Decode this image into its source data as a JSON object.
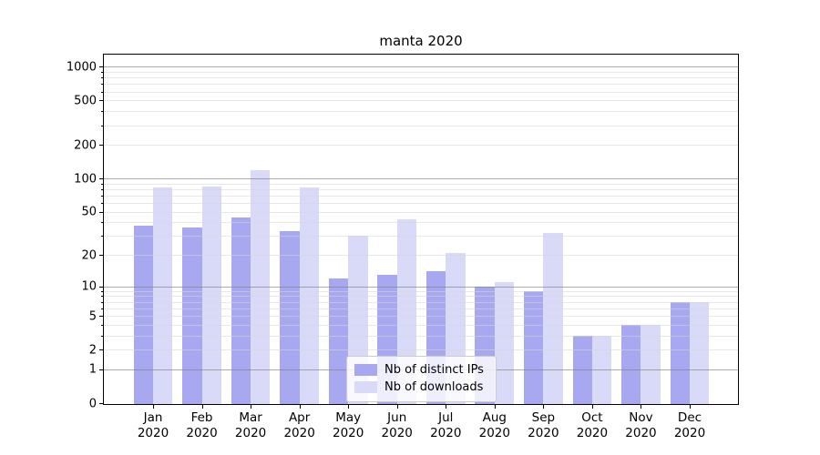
{
  "figure": {
    "title": "manta 2020"
  },
  "chart_data": {
    "type": "bar",
    "title": "manta 2020",
    "categories": [
      "Jan 2020",
      "Feb 2020",
      "Mar 2020",
      "Apr 2020",
      "May 2020",
      "Jun 2020",
      "Jul 2020",
      "Aug 2020",
      "Sep 2020",
      "Oct 2020",
      "Nov 2020",
      "Dec 2020"
    ],
    "series": [
      {
        "name": "Nb of distinct IPs",
        "color": "#a8a8f0",
        "values": [
          37,
          36,
          44,
          33,
          12,
          13,
          14,
          10,
          9,
          3,
          4,
          7
        ]
      },
      {
        "name": "Nb of downloads",
        "color": "#d9d9f8",
        "values": [
          83,
          85,
          119,
          83,
          30,
          43,
          21,
          11,
          32,
          3,
          4,
          7
        ]
      }
    ],
    "ylabel": "",
    "xlabel": "",
    "y_axis": {
      "scale": "log10(1+x)",
      "tick_values": [
        0,
        1,
        2,
        5,
        10,
        20,
        50,
        100,
        200,
        500,
        1000
      ],
      "minor_tick_values": [
        3,
        4,
        6,
        7,
        8,
        9,
        30,
        40,
        60,
        70,
        80,
        90,
        300,
        400,
        600,
        700,
        800,
        900
      ],
      "major_grid_values": [
        1,
        10,
        100,
        1000
      ],
      "top_value": 1300
    },
    "grid": {
      "horizontal": true,
      "vertical": false
    },
    "legend": {
      "position": "inside-lower-center"
    }
  },
  "colors": {
    "bar_dark": "#a8a8f0",
    "bar_light": "#d9d9f8",
    "spine": "#000000",
    "grid_major": "#a9a9a9",
    "grid_minor": "#e6e6e6",
    "legend_border": "#cccccc",
    "text": "#000000"
  }
}
